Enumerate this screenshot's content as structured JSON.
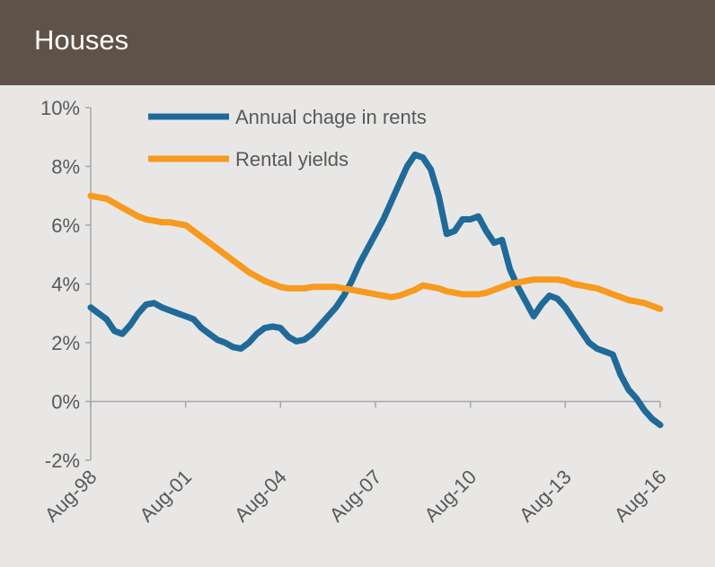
{
  "chart_data": {
    "type": "line",
    "title": "Houses",
    "x": [
      "Aug-98",
      "Nov-98",
      "Feb-99",
      "May-99",
      "Aug-99",
      "Nov-99",
      "Feb-00",
      "May-00",
      "Aug-00",
      "Nov-00",
      "Feb-01",
      "May-01",
      "Aug-01",
      "Nov-01",
      "Feb-02",
      "May-02",
      "Aug-02",
      "Nov-02",
      "Feb-03",
      "May-03",
      "Aug-03",
      "Nov-03",
      "Feb-04",
      "May-04",
      "Aug-04",
      "Nov-04",
      "Feb-05",
      "May-05",
      "Aug-05",
      "Nov-05",
      "Feb-06",
      "May-06",
      "Aug-06",
      "Nov-06",
      "Feb-07",
      "May-07",
      "Aug-07",
      "Nov-07",
      "Feb-08",
      "May-08",
      "Aug-08",
      "Nov-08",
      "Feb-09",
      "May-09",
      "Aug-09",
      "Nov-09",
      "Feb-10",
      "May-10",
      "Aug-10",
      "Nov-10",
      "Feb-11",
      "May-11",
      "Aug-11",
      "Nov-11",
      "Feb-12",
      "May-12",
      "Aug-12",
      "Nov-12",
      "Feb-13",
      "May-13",
      "Aug-13",
      "Nov-13",
      "Feb-14",
      "May-14",
      "Aug-14",
      "Nov-14",
      "Feb-15",
      "May-15",
      "Aug-15",
      "Nov-15",
      "Feb-16",
      "May-16",
      "Aug-16"
    ],
    "series": [
      {
        "name": "Annual chage in rents",
        "color": "#1f6a99",
        "values": [
          3.2,
          3.0,
          2.8,
          2.4,
          2.3,
          2.6,
          3.0,
          3.3,
          3.35,
          3.2,
          3.1,
          3.0,
          2.9,
          2.8,
          2.5,
          2.3,
          2.1,
          2.0,
          1.85,
          1.8,
          2.0,
          2.3,
          2.5,
          2.55,
          2.5,
          2.2,
          2.05,
          2.1,
          2.3,
          2.6,
          2.9,
          3.2,
          3.6,
          4.1,
          4.7,
          5.2,
          5.7,
          6.2,
          6.8,
          7.4,
          8.0,
          8.4,
          8.3,
          7.9,
          7.0,
          5.7,
          5.8,
          6.2,
          6.2,
          6.3,
          5.8,
          5.4,
          5.5,
          4.5,
          3.9,
          3.4,
          2.9,
          3.3,
          3.6,
          3.5,
          3.2,
          2.8,
          2.4,
          2.0,
          1.8,
          1.7,
          1.6,
          0.9,
          0.4,
          0.1,
          -0.3,
          -0.6,
          -0.8
        ]
      },
      {
        "name": "Rental yields",
        "color": "#f79a1e",
        "values": [
          7.0,
          6.95,
          6.9,
          6.75,
          6.6,
          6.45,
          6.3,
          6.2,
          6.15,
          6.1,
          6.1,
          6.05,
          6.0,
          5.8,
          5.6,
          5.4,
          5.2,
          5.0,
          4.8,
          4.6,
          4.4,
          4.25,
          4.1,
          4.0,
          3.9,
          3.85,
          3.85,
          3.85,
          3.9,
          3.9,
          3.9,
          3.9,
          3.85,
          3.8,
          3.75,
          3.7,
          3.65,
          3.6,
          3.55,
          3.6,
          3.7,
          3.8,
          3.95,
          3.9,
          3.85,
          3.75,
          3.7,
          3.65,
          3.65,
          3.65,
          3.7,
          3.8,
          3.9,
          4.0,
          4.05,
          4.1,
          4.15,
          4.15,
          4.15,
          4.15,
          4.1,
          4.0,
          3.95,
          3.9,
          3.85,
          3.75,
          3.65,
          3.55,
          3.45,
          3.4,
          3.35,
          3.25,
          3.15
        ]
      }
    ],
    "xlim": [
      "Aug-98",
      "Aug-16"
    ],
    "xticks": [
      "Aug-98",
      "Aug-01",
      "Aug-04",
      "Aug-07",
      "Aug-10",
      "Aug-13",
      "Aug-16"
    ],
    "ylim": [
      -2,
      10
    ],
    "yticks": [
      {
        "value": -2,
        "label": "-2%"
      },
      {
        "value": 0,
        "label": "0%"
      },
      {
        "value": 2,
        "label": "2%"
      },
      {
        "value": 4,
        "label": "4%"
      },
      {
        "value": 6,
        "label": "6%"
      },
      {
        "value": 8,
        "label": "8%"
      },
      {
        "value": 10,
        "label": "10%"
      }
    ]
  }
}
